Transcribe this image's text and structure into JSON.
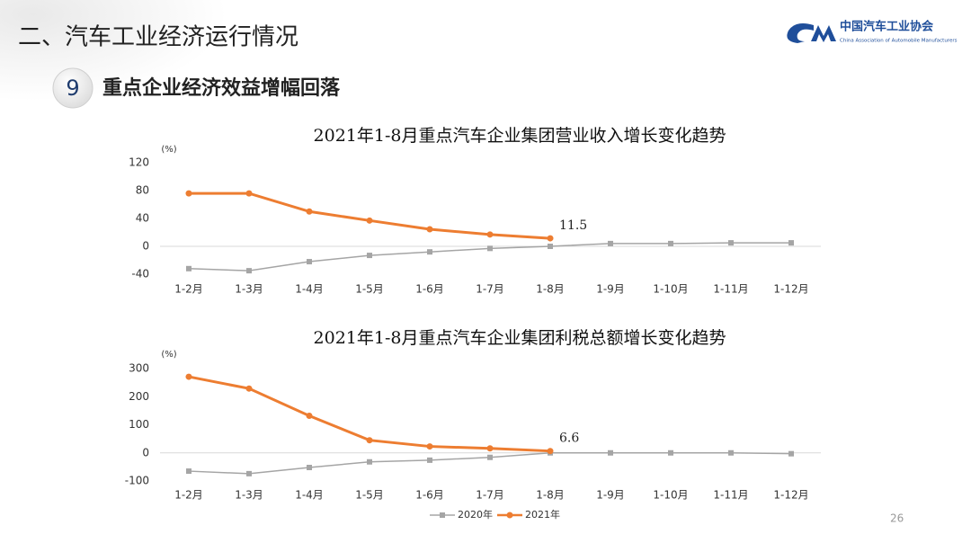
{
  "slide": {
    "title": "二、汽车工业经济运行情况",
    "section_number": "9",
    "section_title": "重点企业经济效益增幅回落",
    "logo_cn": "中国汽车工业协会",
    "logo_en": "China Association of Automobile Manufacturers",
    "page_number": "26"
  },
  "chart_data": [
    {
      "type": "line",
      "title": "2021年1-8月重点汽车企业集团营业收入增长变化趋势",
      "y_label": "(%)",
      "categories": [
        "1-2月",
        "1-3月",
        "1-4月",
        "1-5月",
        "1-6月",
        "1-7月",
        "1-8月",
        "1-9月",
        "1-10月",
        "1-11月",
        "1-12月"
      ],
      "series": [
        {
          "name": "2020年",
          "color": "#a5a5a5",
          "values": [
            -32,
            -35,
            -22,
            -13,
            -8,
            -3,
            0,
            4,
            4,
            5,
            5
          ]
        },
        {
          "name": "2021年",
          "color": "#ed7d31",
          "values": [
            76,
            76,
            50,
            37,
            24.5,
            17,
            11.5,
            null,
            null,
            null,
            null
          ]
        }
      ],
      "ylim": [
        -40,
        120
      ],
      "yticks": [
        -40,
        0,
        40,
        80,
        120
      ],
      "legend": "none"
    },
    {
      "type": "line",
      "title": "2021年1-8月重点汽车企业集团利税总额增长变化趋势",
      "y_label": "(%)",
      "categories": [
        "1-2月",
        "1-3月",
        "1-4月",
        "1-5月",
        "1-6月",
        "1-7月",
        "1-8月",
        "1-9月",
        "1-10月",
        "1-11月",
        "1-12月"
      ],
      "series": [
        {
          "name": "2020年",
          "color": "#a5a5a5",
          "values": [
            -65,
            -74,
            -52,
            -32,
            -26,
            -16,
            0,
            0,
            0,
            0,
            -3
          ]
        },
        {
          "name": "2021年",
          "color": "#ed7d31",
          "values": [
            271,
            229,
            132,
            45,
            23,
            16,
            6.6,
            null,
            null,
            null,
            null
          ]
        }
      ],
      "ylim": [
        -100,
        300
      ],
      "yticks": [
        -100,
        0,
        100,
        200,
        300
      ],
      "legend": "bottom"
    }
  ]
}
